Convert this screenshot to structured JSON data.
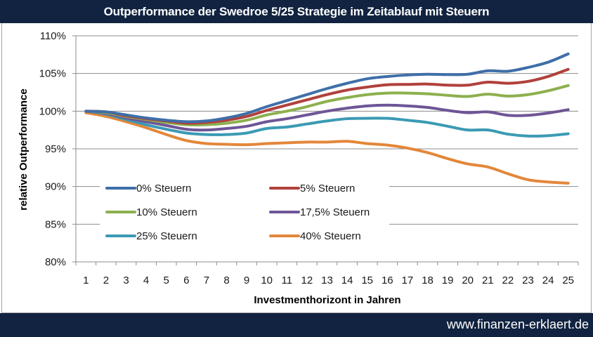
{
  "header": {
    "title": "Outperformance der Swedroe 5/25 Strategie im Zeitablauf mit Steuern"
  },
  "footer": {
    "url": "www.finanzen-erklaert.de"
  },
  "chart_data": {
    "type": "line",
    "title": "Outperformance der Swedroe 5/25 Strategie im Zeitablauf mit Steuern",
    "xlabel": "Investmenthorizont in Jahren",
    "ylabel": "relative Outperformance",
    "x": [
      1,
      2,
      3,
      4,
      5,
      6,
      7,
      8,
      9,
      10,
      11,
      12,
      13,
      14,
      15,
      16,
      17,
      18,
      19,
      20,
      21,
      22,
      23,
      24,
      25
    ],
    "ylim": [
      80,
      110
    ],
    "yticks": [
      80,
      85,
      90,
      95,
      100,
      105,
      110
    ],
    "ytick_labels": [
      "80%",
      "85%",
      "90%",
      "95%",
      "100%",
      "105%",
      "110%"
    ],
    "grid": "horizontal",
    "legend_position": "inside-lower-left",
    "series": [
      {
        "name": "0% Steuern",
        "color": "#3f6fa8",
        "values": [
          100.0,
          99.9,
          99.5,
          99.1,
          98.8,
          98.6,
          98.7,
          99.1,
          99.7,
          100.6,
          101.4,
          102.2,
          103.0,
          103.7,
          104.3,
          104.6,
          104.8,
          104.9,
          104.85,
          104.9,
          105.35,
          105.3,
          105.8,
          106.5,
          107.6
        ]
      },
      {
        "name": "5% Steuern",
        "color": "#b1403c",
        "values": [
          100.0,
          99.9,
          99.4,
          99.0,
          98.7,
          98.4,
          98.5,
          98.8,
          99.3,
          100.1,
          100.8,
          101.5,
          102.2,
          102.8,
          103.2,
          103.5,
          103.55,
          103.6,
          103.45,
          103.45,
          103.85,
          103.7,
          103.95,
          104.6,
          105.55
        ]
      },
      {
        "name": "10% Steuern",
        "color": "#8cb04e",
        "values": [
          100.0,
          99.8,
          99.3,
          98.9,
          98.5,
          98.2,
          98.2,
          98.4,
          98.8,
          99.5,
          100.0,
          100.6,
          101.3,
          101.8,
          102.2,
          102.4,
          102.4,
          102.3,
          102.1,
          101.95,
          102.25,
          102.0,
          102.2,
          102.7,
          103.4
        ]
      },
      {
        "name": "17,5% Steuern",
        "color": "#6e5596",
        "values": [
          100.0,
          99.7,
          99.1,
          98.6,
          98.1,
          97.6,
          97.5,
          97.7,
          98.0,
          98.6,
          99.0,
          99.5,
          100.0,
          100.4,
          100.7,
          100.8,
          100.7,
          100.5,
          100.1,
          99.8,
          99.9,
          99.45,
          99.45,
          99.75,
          100.2
        ]
      },
      {
        "name": "25% Steuern",
        "color": "#3b9ab4",
        "values": [
          100.0,
          99.6,
          98.9,
          98.2,
          97.6,
          97.1,
          96.9,
          96.9,
          97.1,
          97.7,
          97.9,
          98.3,
          98.7,
          99.0,
          99.05,
          99.05,
          98.8,
          98.5,
          98.0,
          97.5,
          97.5,
          96.95,
          96.7,
          96.75,
          97.0
        ]
      },
      {
        "name": "40% Steuern",
        "color": "#e3873a",
        "values": [
          99.8,
          99.3,
          98.6,
          97.8,
          96.9,
          96.1,
          95.7,
          95.6,
          95.55,
          95.7,
          95.8,
          95.9,
          95.9,
          96.0,
          95.7,
          95.5,
          95.1,
          94.5,
          93.7,
          93.0,
          92.6,
          91.7,
          90.9,
          90.6,
          90.45
        ]
      }
    ]
  }
}
